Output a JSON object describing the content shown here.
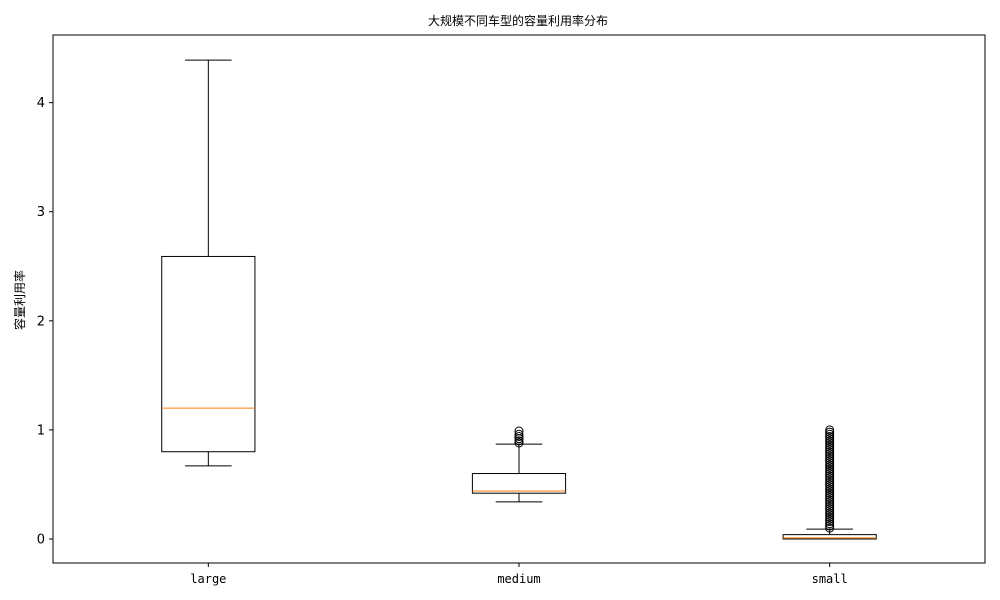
{
  "chart_data": {
    "type": "box",
    "title": "大规模不同车型的容量利用率分布",
    "xlabel": "",
    "ylabel": "容量利用率",
    "ylim": [
      -0.22,
      4.62
    ],
    "yticks": [
      0,
      1,
      2,
      3,
      4
    ],
    "grid": false,
    "categories": [
      "large",
      "medium",
      "small"
    ],
    "boxes": [
      {
        "category": "large",
        "whisker_low": 0.67,
        "q1": 0.8,
        "median": 1.2,
        "q3": 2.59,
        "whisker_high": 4.39,
        "outliers": []
      },
      {
        "category": "medium",
        "whisker_low": 0.34,
        "q1": 0.42,
        "median": 0.44,
        "q3": 0.6,
        "whisker_high": 0.87,
        "outliers": [
          0.88,
          0.9,
          0.92,
          0.94,
          0.96,
          0.99
        ]
      },
      {
        "category": "small",
        "whisker_low": 0.0,
        "q1": 0.0,
        "median": 0.01,
        "q3": 0.04,
        "whisker_high": 0.09,
        "outliers": [
          0.1,
          0.12,
          0.14,
          0.16,
          0.18,
          0.2,
          0.22,
          0.24,
          0.26,
          0.28,
          0.3,
          0.32,
          0.34,
          0.36,
          0.38,
          0.4,
          0.42,
          0.44,
          0.46,
          0.48,
          0.5,
          0.52,
          0.54,
          0.56,
          0.58,
          0.6,
          0.62,
          0.64,
          0.66,
          0.68,
          0.7,
          0.72,
          0.74,
          0.76,
          0.78,
          0.8,
          0.82,
          0.84,
          0.86,
          0.88,
          0.9,
          0.92,
          0.94,
          0.96,
          0.98,
          1.0
        ]
      }
    ],
    "colors": {
      "box": "#000000",
      "median": "#ff7f0e",
      "outlier": "#000000"
    }
  }
}
